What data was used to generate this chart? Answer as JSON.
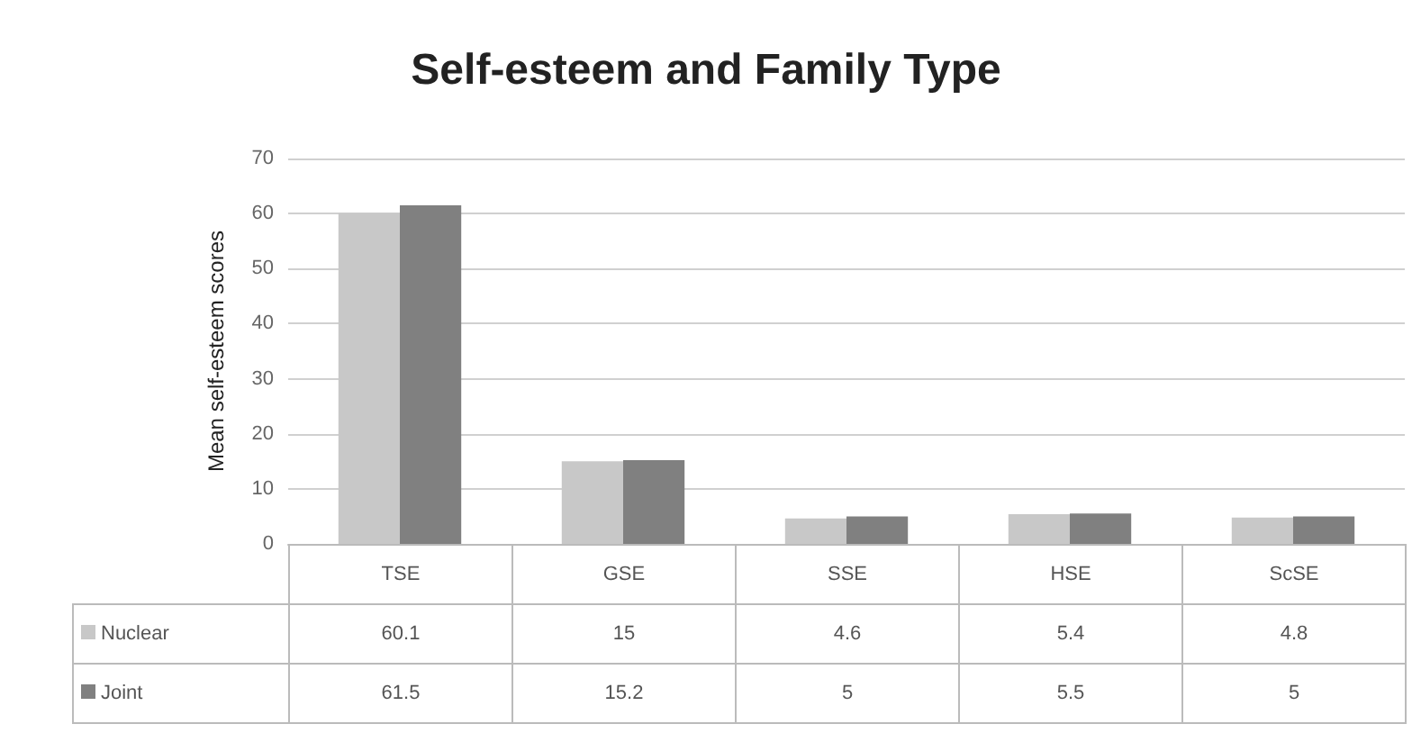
{
  "chart_data": {
    "type": "bar",
    "title": "Self-esteem and Family Type",
    "ylabel": "Mean self-esteem scores",
    "categories": [
      "TSE",
      "GSE",
      "SSE",
      "HSE",
      "ScSE"
    ],
    "series": [
      {
        "name": "Nuclear",
        "color": "#c8c8c8",
        "values": [
          60.1,
          15,
          4.6,
          5.4,
          4.8
        ]
      },
      {
        "name": "Joint",
        "color": "#808080",
        "values": [
          61.5,
          15.2,
          5,
          5.5,
          5
        ]
      }
    ],
    "ylim": [
      0,
      70
    ],
    "yticks": [
      0,
      10,
      20,
      30,
      40,
      50,
      60,
      70
    ],
    "grid": "y",
    "data_labels": true,
    "legend": "bottom"
  }
}
